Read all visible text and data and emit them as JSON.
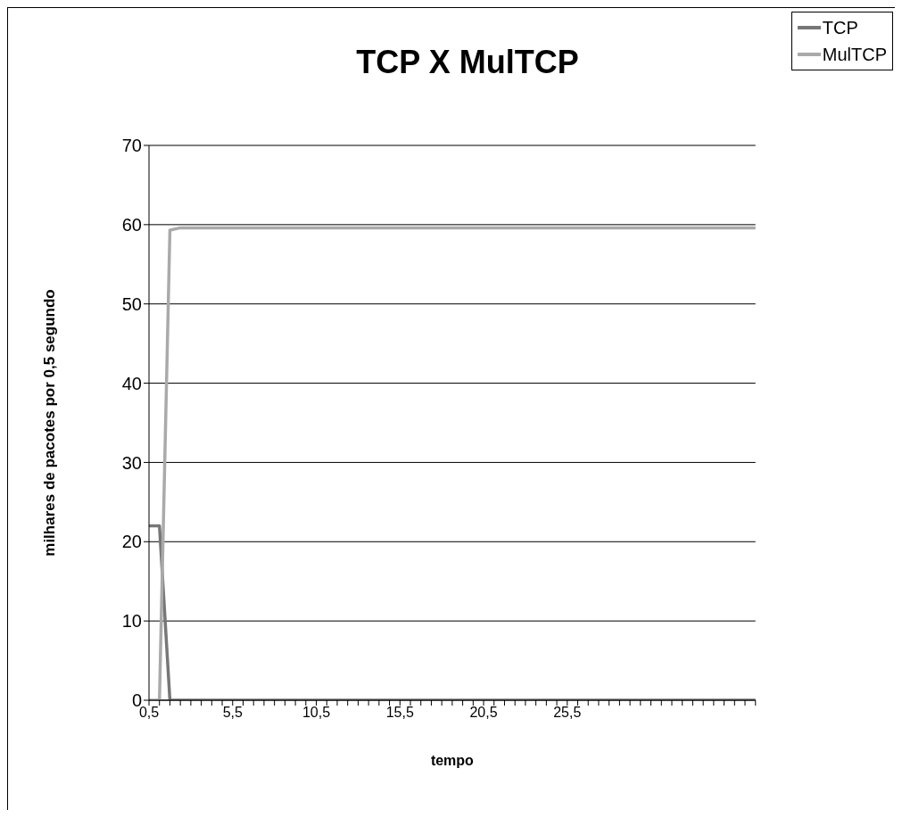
{
  "chart_data": {
    "type": "line",
    "title": "TCP X MulTCP",
    "xlabel": "tempo",
    "ylabel": "milhares de pacotes por 0,5 segundo",
    "categories": [
      "0,5",
      null,
      null,
      null,
      null,
      null,
      null,
      null,
      "5,5",
      null,
      null,
      null,
      null,
      null,
      null,
      null,
      "10,5",
      null,
      null,
      null,
      null,
      null,
      null,
      null,
      "15,5",
      null,
      null,
      null,
      null,
      null,
      null,
      null,
      "20,5",
      null,
      null,
      null,
      null,
      null,
      null,
      null,
      "25,5",
      null,
      null,
      null,
      null,
      null,
      null,
      null,
      null,
      null,
      null,
      null,
      null,
      null,
      null,
      null,
      null,
      null,
      null
    ],
    "series": [
      {
        "name": "TCP",
        "color": "#777777",
        "values": [
          22,
          22,
          0,
          0,
          0,
          0,
          0,
          0,
          0,
          0,
          0,
          0,
          0,
          0,
          0,
          0,
          0,
          0,
          0,
          0,
          0,
          0,
          0,
          0,
          0,
          0,
          0,
          0,
          0,
          0,
          0,
          0,
          0,
          0,
          0,
          0,
          0,
          0,
          0,
          0,
          0,
          0,
          0,
          0,
          0,
          0,
          0,
          0,
          0,
          0,
          0,
          0,
          0,
          0,
          0,
          0,
          0,
          0,
          0
        ]
      },
      {
        "name": "MulTCP",
        "color": "#aaaaaa",
        "values": [
          0,
          0,
          59.3,
          59.6,
          59.6,
          59.6,
          59.6,
          59.6,
          59.6,
          59.6,
          59.6,
          59.6,
          59.6,
          59.6,
          59.6,
          59.6,
          59.6,
          59.6,
          59.6,
          59.6,
          59.6,
          59.6,
          59.6,
          59.6,
          59.6,
          59.6,
          59.6,
          59.6,
          59.6,
          59.6,
          59.6,
          59.6,
          59.6,
          59.6,
          59.6,
          59.6,
          59.6,
          59.6,
          59.6,
          59.6,
          59.6,
          59.6,
          59.6,
          59.6,
          59.6,
          59.6,
          59.6,
          59.6,
          59.6,
          59.6,
          59.6,
          59.6,
          59.6,
          59.6,
          59.6,
          59.6,
          59.6,
          59.6,
          59.6
        ]
      }
    ],
    "ylim": [
      0,
      70
    ],
    "yticks": [
      0,
      10,
      20,
      30,
      40,
      50,
      60,
      70
    ],
    "grid": "y",
    "legend": "top right",
    "marker": "none",
    "line_style": "solid"
  }
}
